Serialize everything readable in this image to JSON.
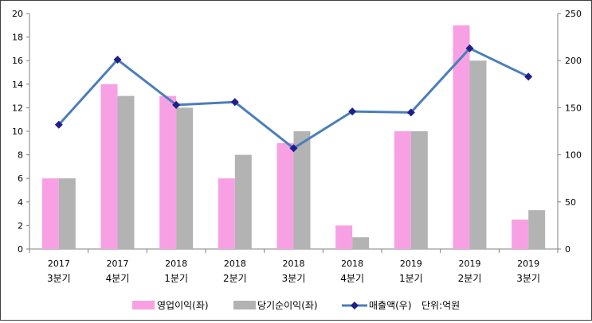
{
  "chart_data": {
    "type": "bar",
    "categories": [
      [
        "2017",
        "3분기"
      ],
      [
        "2017",
        "4분기"
      ],
      [
        "2018",
        "1분기"
      ],
      [
        "2018",
        "2분기"
      ],
      [
        "2018",
        "3분기"
      ],
      [
        "2018",
        "4분기"
      ],
      [
        "2019",
        "1분기"
      ],
      [
        "2019",
        "2분기"
      ],
      [
        "2019",
        "3분기"
      ]
    ],
    "series": [
      {
        "name": "영업이익(좌)",
        "kind": "bar",
        "axis": "left",
        "color": "#f7a1e4",
        "values": [
          6,
          14,
          13,
          6,
          9,
          2,
          10,
          19,
          2.5
        ]
      },
      {
        "name": "당기순이익(좌)",
        "kind": "bar",
        "axis": "left",
        "color": "#b3b3b3",
        "values": [
          6,
          13,
          12,
          8,
          10,
          1,
          10,
          16,
          3.3
        ]
      },
      {
        "name": "매출액(우)",
        "kind": "line",
        "axis": "right",
        "color": "#4a7ebb",
        "marker_color": "#1f1f8c",
        "values": [
          132,
          201,
          153,
          156,
          107,
          146,
          145,
          213,
          183
        ]
      }
    ],
    "left_axis": {
      "min": 0,
      "max": 20,
      "ticks": [
        0,
        2,
        4,
        6,
        8,
        10,
        12,
        14,
        16,
        18,
        20
      ]
    },
    "right_axis": {
      "min": 0,
      "max": 250,
      "ticks": [
        0,
        50,
        100,
        150,
        200,
        250
      ]
    },
    "legend": {
      "position": "bottom",
      "unit_text": "단위:억원"
    },
    "grid": false
  }
}
